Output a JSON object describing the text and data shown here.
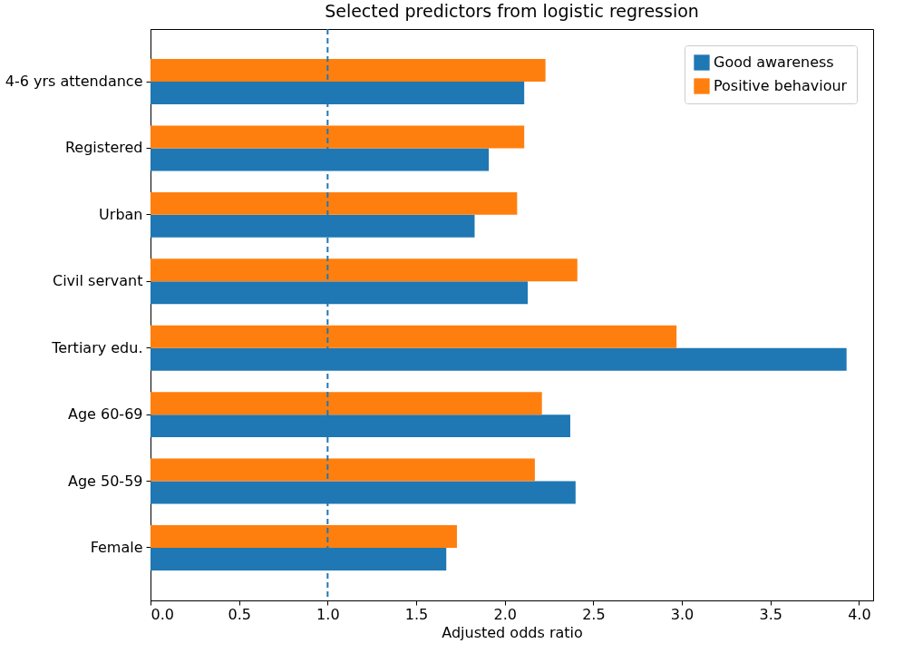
{
  "chart_data": {
    "type": "bar",
    "orientation": "horizontal",
    "title": "Selected predictors from logistic regression",
    "xlabel": "Adjusted odds ratio",
    "categories": [
      "4-6 yrs attendance",
      "Registered",
      "Urban",
      "Civil servant",
      "Tertiary edu.",
      "Age 60-69",
      "Age 50-59",
      "Female"
    ],
    "series": [
      {
        "name": "Good awareness",
        "color": "#1f77b4",
        "values": [
          2.11,
          1.91,
          1.83,
          2.13,
          3.93,
          2.37,
          2.4,
          1.67
        ]
      },
      {
        "name": "Positive behaviour",
        "color": "#ff7f0e",
        "values": [
          2.23,
          2.11,
          2.07,
          2.41,
          2.97,
          2.21,
          2.17,
          1.73
        ]
      }
    ],
    "xlim": [
      0,
      4.08
    ],
    "xticks": [
      {
        "value": 0,
        "label": "0.0"
      },
      {
        "value": 0.5,
        "label": "0.5"
      },
      {
        "value": 1,
        "label": "1.0"
      },
      {
        "value": 1.5,
        "label": "1.5"
      },
      {
        "value": 2,
        "label": "2.0"
      },
      {
        "value": 2.5,
        "label": "2.5"
      },
      {
        "value": 3,
        "label": "3.0"
      },
      {
        "value": 3.5,
        "label": "3.5"
      },
      {
        "value": 4,
        "label": "4.0"
      }
    ],
    "ref_lines": [
      {
        "axis": "x",
        "value": 1,
        "color": "#1f77b4",
        "line_style": "dashed"
      }
    ],
    "legend": "top right",
    "grid": false
  }
}
